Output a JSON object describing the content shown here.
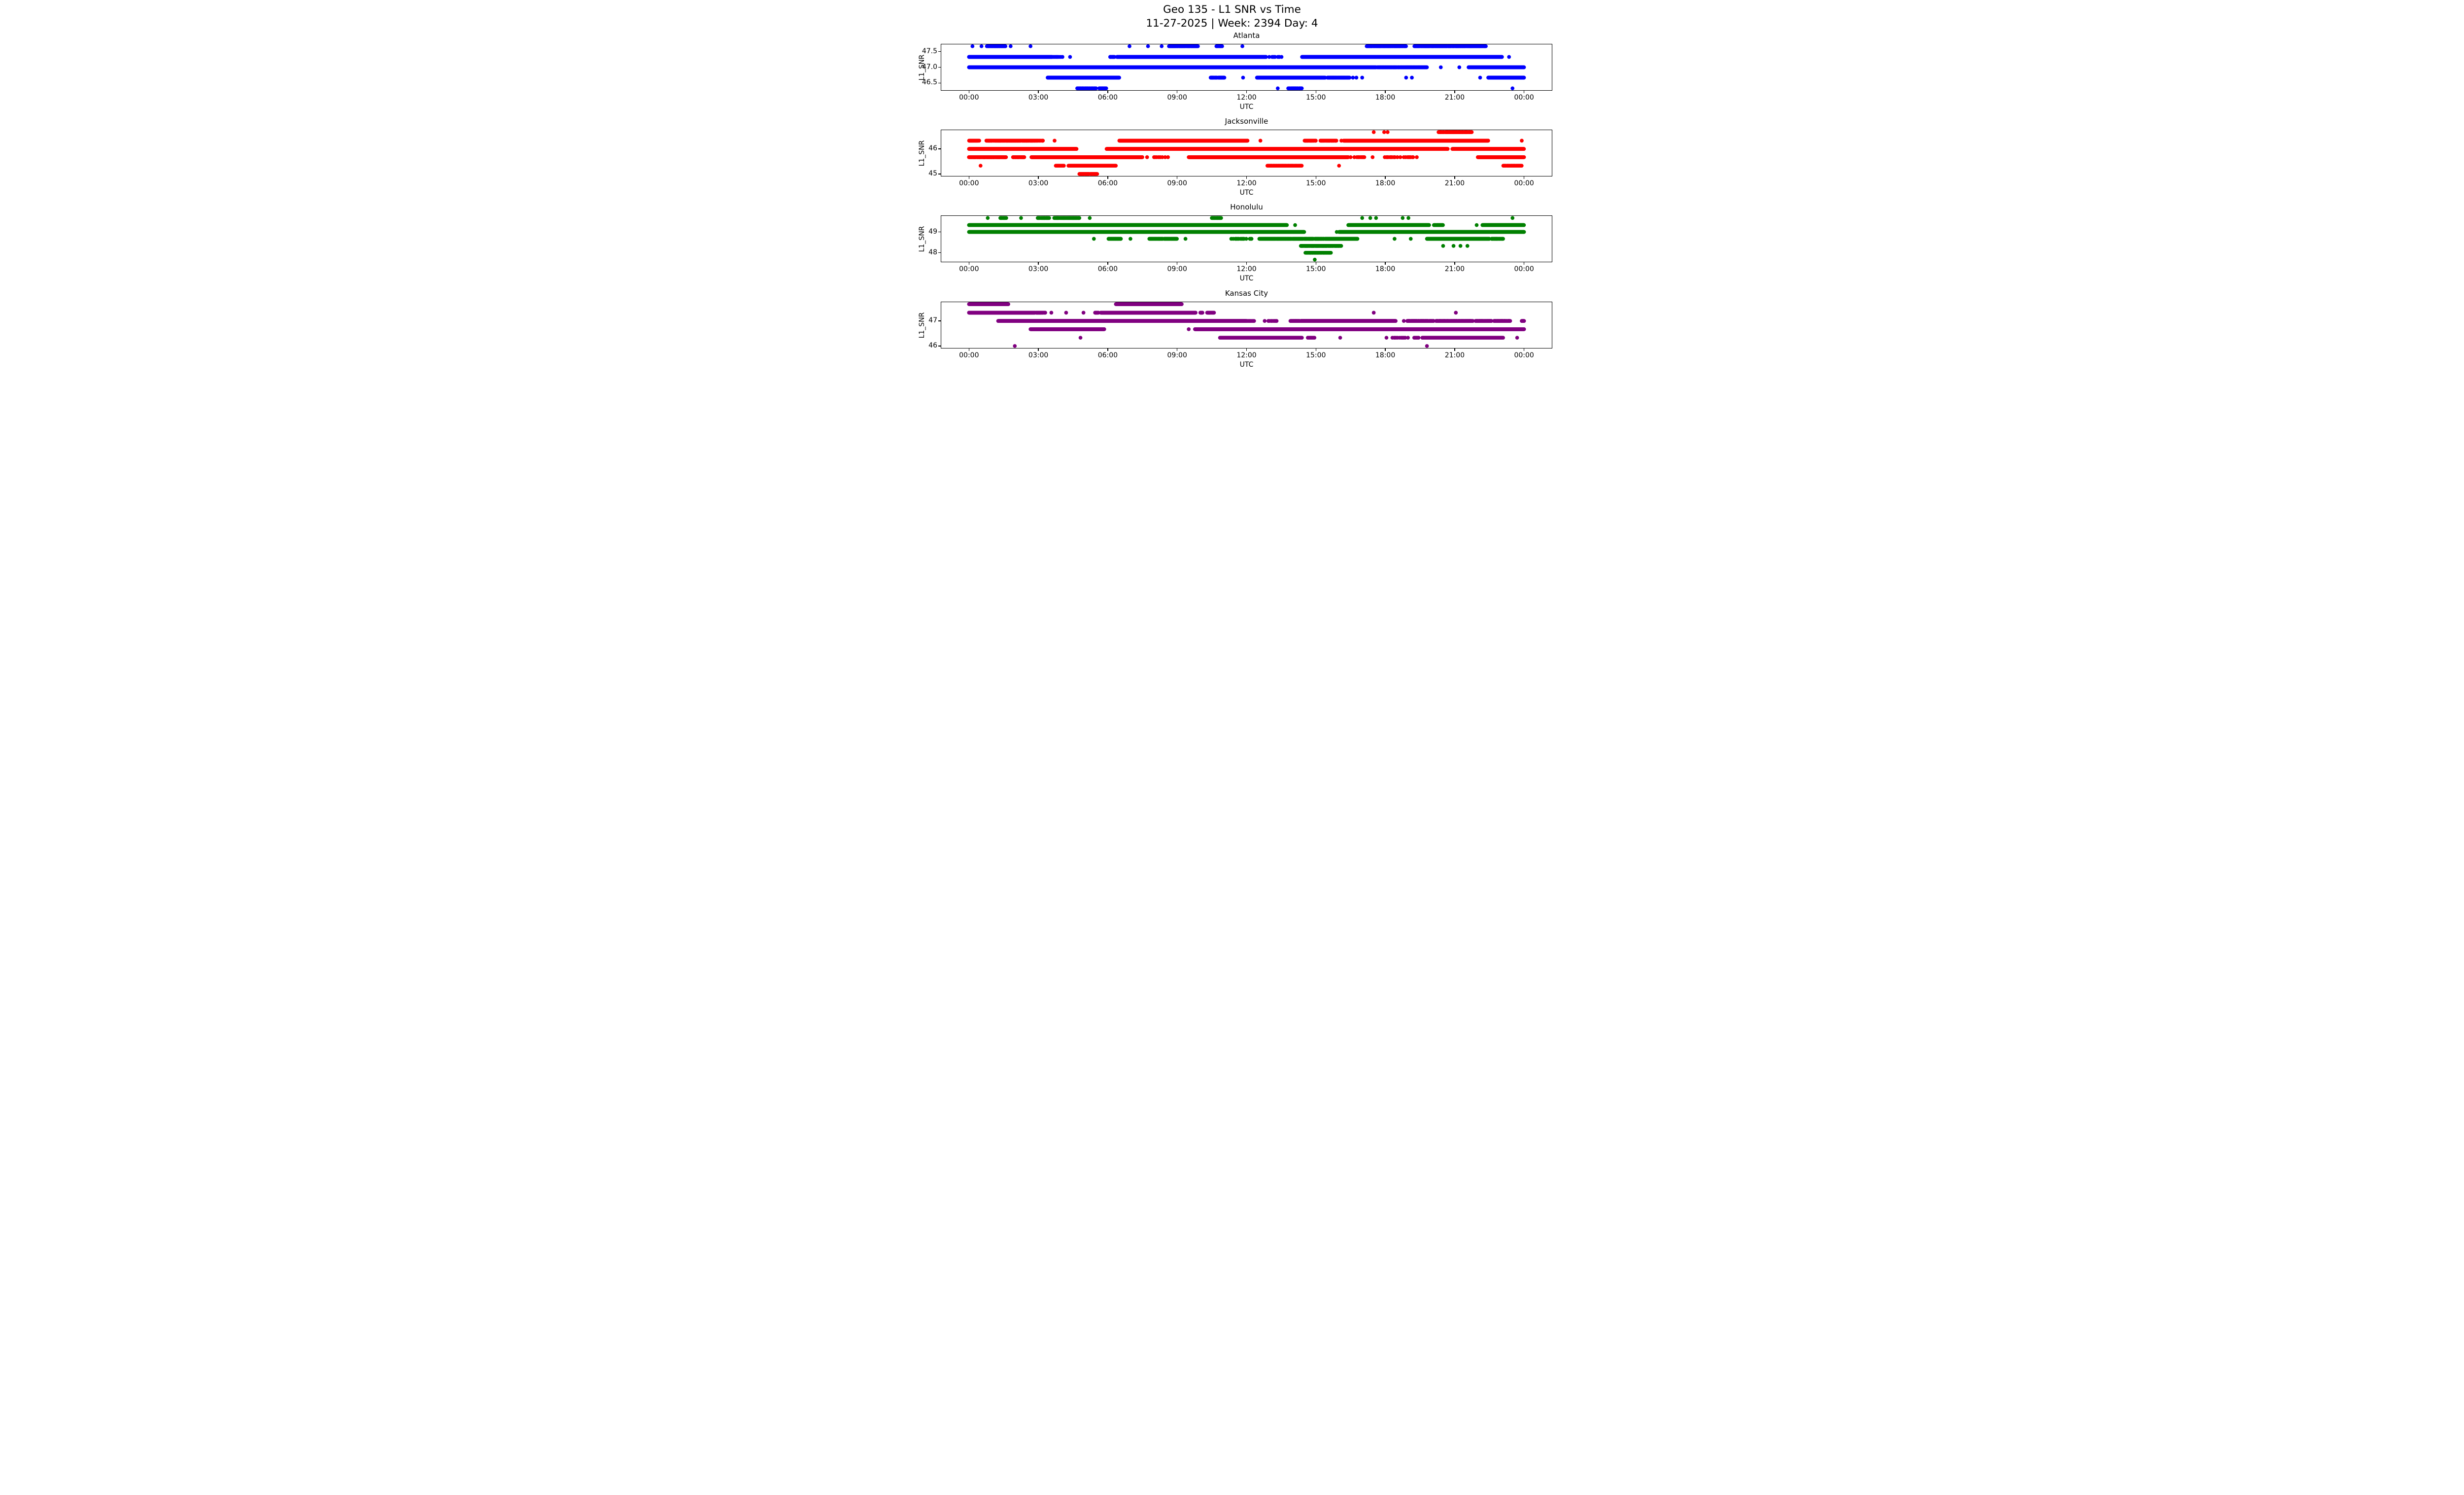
{
  "figure": {
    "suptitle_line1": "Geo 135 - L1 SNR vs Time",
    "suptitle_line2": "11-27-2025 | Week: 2394 Day: 4",
    "background_color": "#ffffff",
    "text_color": "#000000",
    "x_axis": {
      "label": "UTC",
      "tick_labels": [
        "00:00",
        "03:00",
        "06:00",
        "09:00",
        "12:00",
        "15:00",
        "18:00",
        "21:00",
        "00:00"
      ],
      "tick_hours": [
        0,
        3,
        6,
        9,
        12,
        15,
        18,
        21,
        24
      ]
    }
  },
  "chart_data": [
    {
      "type": "scatter",
      "title": "Atlanta",
      "color": "#0000ff",
      "xlabel": "UTC",
      "ylabel": "L1_SNR",
      "xlim_hours": [
        -1.2,
        25.2
      ],
      "ylim": [
        46.27,
        47.73
      ],
      "y_ticks": {
        "values": [
          47.5,
          47.0,
          46.5
        ],
        "labels": [
          "47.5",
          "47.0",
          "46.5"
        ]
      },
      "snr_levels": [
        47.67,
        47.33,
        47.0,
        46.67,
        46.33
      ],
      "runs": [
        [
          47.67,
          0.15,
          0.15,
          "dot"
        ],
        [
          47.67,
          0.54,
          0.54,
          "dot"
        ],
        [
          47.67,
          0.77,
          1.58,
          "dense"
        ],
        [
          47.67,
          1.8,
          1.8,
          "dot"
        ],
        [
          47.67,
          2.66,
          2.66,
          "dot"
        ],
        [
          47.67,
          6.94,
          6.94,
          "dot"
        ],
        [
          47.67,
          7.74,
          7.74,
          "dot"
        ],
        [
          47.67,
          8.33,
          8.33,
          "dot"
        ],
        [
          47.67,
          8.65,
          9.9,
          "dense"
        ],
        [
          47.67,
          10.7,
          10.95,
          "dense"
        ],
        [
          47.67,
          11.82,
          11.82,
          "dot"
        ],
        [
          47.67,
          17.2,
          18.9,
          "dense"
        ],
        [
          47.67,
          19.25,
          22.35,
          "dense"
        ],
        [
          47.33,
          0,
          3.6,
          "solid"
        ],
        [
          47.33,
          3.65,
          4.15,
          "sparse"
        ],
        [
          47.33,
          4.37,
          4.37,
          "dot"
        ],
        [
          47.33,
          6.1,
          6.3,
          "dense"
        ],
        [
          47.33,
          6.4,
          12.85,
          "solid"
        ],
        [
          47.33,
          12.95,
          13.55,
          "sparse"
        ],
        [
          47.33,
          14.4,
          23.05,
          "solid"
        ],
        [
          47.33,
          23.35,
          23.35,
          "dot"
        ],
        [
          47.0,
          0,
          17.6,
          "solid"
        ],
        [
          47.0,
          17.65,
          19.8,
          "dense"
        ],
        [
          47.0,
          20.4,
          20.4,
          "dot"
        ],
        [
          47.0,
          21.2,
          21.2,
          "dot"
        ],
        [
          47.0,
          21.6,
          24,
          "solid"
        ],
        [
          46.67,
          3.4,
          6.5,
          "solid"
        ],
        [
          46.67,
          10.45,
          11.05,
          "dense"
        ],
        [
          46.67,
          11.85,
          11.85,
          "dot"
        ],
        [
          46.67,
          12.45,
          15.4,
          "solid"
        ],
        [
          46.67,
          15.5,
          16.45,
          "dense"
        ],
        [
          46.67,
          16.6,
          16.6,
          "dot"
        ],
        [
          46.67,
          16.75,
          16.75,
          "dot"
        ],
        [
          46.67,
          17.0,
          17.0,
          "dot"
        ],
        [
          46.67,
          18.9,
          18.9,
          "dot"
        ],
        [
          46.67,
          19.15,
          19.15,
          "dot"
        ],
        [
          46.67,
          22.1,
          22.1,
          "dot"
        ],
        [
          46.67,
          22.45,
          24,
          "solid"
        ],
        [
          46.33,
          4.68,
          5.5,
          "dense"
        ],
        [
          46.33,
          5.63,
          5.94,
          "dense"
        ],
        [
          46.33,
          13.35,
          13.35,
          "dot"
        ],
        [
          46.33,
          13.8,
          14.4,
          "dense"
        ],
        [
          46.33,
          23.5,
          23.5,
          "dot"
        ]
      ]
    },
    {
      "type": "scatter",
      "title": "Jacksonville",
      "color": "#ff0000",
      "xlabel": "UTC",
      "ylabel": "L1_SNR",
      "xlim_hours": [
        -1.2,
        25.2
      ],
      "ylim": [
        44.92,
        46.75
      ],
      "y_ticks": {
        "values": [
          46,
          45
        ],
        "labels": [
          "46",
          "45"
        ]
      },
      "snr_levels": [
        46.67,
        46.33,
        46.0,
        45.67,
        45.33,
        45.0
      ],
      "runs": [
        [
          46.67,
          17.5,
          17.5,
          "dot"
        ],
        [
          46.67,
          17.95,
          17.95,
          "dot"
        ],
        [
          46.67,
          18.1,
          18.1,
          "dot"
        ],
        [
          46.67,
          20.3,
          21.75,
          "dense"
        ],
        [
          46.33,
          0,
          0.45,
          "dense"
        ],
        [
          46.33,
          0.75,
          3.2,
          "dense"
        ],
        [
          46.33,
          3.7,
          3.7,
          "dot"
        ],
        [
          46.33,
          6.5,
          12.05,
          "solid"
        ],
        [
          46.33,
          12.6,
          12.6,
          "dot"
        ],
        [
          46.33,
          14.5,
          15.0,
          "dense"
        ],
        [
          46.33,
          15.2,
          15.9,
          "dense"
        ],
        [
          46.33,
          16.1,
          16.1,
          "dot"
        ],
        [
          46.33,
          16.2,
          22.45,
          "solid"
        ],
        [
          46.33,
          23.9,
          23.9,
          "dot"
        ],
        [
          46.0,
          0,
          4.65,
          "solid"
        ],
        [
          46.0,
          5.95,
          20.7,
          "solid"
        ],
        [
          46.0,
          20.9,
          24,
          "solid"
        ],
        [
          45.67,
          0,
          1.6,
          "dense"
        ],
        [
          45.67,
          1.9,
          2.4,
          "dense"
        ],
        [
          45.67,
          2.7,
          7.5,
          "solid"
        ],
        [
          45.67,
          7.7,
          7.7,
          "dot"
        ],
        [
          45.67,
          8.0,
          8.6,
          "sparse"
        ],
        [
          45.67,
          9.5,
          16.4,
          "solid"
        ],
        [
          45.67,
          16.5,
          17.1,
          "sparse"
        ],
        [
          45.67,
          17.45,
          17.45,
          "dot"
        ],
        [
          45.67,
          17.85,
          19.4,
          "sparse"
        ],
        [
          45.67,
          22.0,
          24,
          "solid"
        ],
        [
          45.33,
          0.5,
          0.5,
          "dot"
        ],
        [
          45.33,
          3.75,
          4.1,
          "dense"
        ],
        [
          45.33,
          4.3,
          6.35,
          "solid"
        ],
        [
          45.33,
          12.9,
          14.4,
          "dense"
        ],
        [
          45.33,
          16.0,
          16.0,
          "dot"
        ],
        [
          45.33,
          23.1,
          23.9,
          "dense"
        ],
        [
          45.0,
          4.75,
          5.55,
          "dense"
        ]
      ]
    },
    {
      "type": "scatter",
      "title": "Honolulu",
      "color": "#008000",
      "xlabel": "UTC",
      "ylabel": "L1_SNR",
      "xlim_hours": [
        -1.2,
        25.2
      ],
      "ylim": [
        47.57,
        49.77
      ],
      "y_ticks": {
        "values": [
          49,
          48
        ],
        "labels": [
          "49",
          "48"
        ]
      },
      "snr_levels": [
        49.67,
        49.33,
        49.0,
        48.67,
        48.33,
        48.0,
        47.67
      ],
      "runs": [
        [
          49.67,
          0.81,
          0.81,
          "dot"
        ],
        [
          49.67,
          1.35,
          1.62,
          "dense"
        ],
        [
          49.67,
          2.25,
          2.25,
          "dot"
        ],
        [
          49.67,
          2.97,
          3.47,
          "dense"
        ],
        [
          49.67,
          3.69,
          4.77,
          "dense"
        ],
        [
          49.67,
          5.22,
          5.22,
          "dot"
        ],
        [
          49.67,
          10.5,
          10.9,
          "dense"
        ],
        [
          49.67,
          17.0,
          17.0,
          "dot"
        ],
        [
          49.67,
          17.35,
          17.35,
          "dot"
        ],
        [
          49.67,
          17.6,
          17.6,
          "dot"
        ],
        [
          49.67,
          18.75,
          18.75,
          "dot"
        ],
        [
          49.67,
          19.0,
          19.0,
          "dot"
        ],
        [
          49.67,
          23.5,
          23.5,
          "dot"
        ],
        [
          49.33,
          0,
          13.75,
          "solid"
        ],
        [
          49.33,
          14.1,
          14.1,
          "dot"
        ],
        [
          49.33,
          16.4,
          19.9,
          "solid"
        ],
        [
          49.33,
          20.1,
          20.5,
          "dense"
        ],
        [
          49.33,
          21.95,
          21.95,
          "dot"
        ],
        [
          49.33,
          22.2,
          24,
          "solid"
        ],
        [
          49.0,
          0,
          14.5,
          "solid"
        ],
        [
          49.0,
          15.9,
          15.9,
          "dot"
        ],
        [
          49.0,
          16.0,
          24,
          "solid"
        ],
        [
          48.67,
          5.4,
          5.4,
          "dot"
        ],
        [
          48.67,
          6.03,
          6.57,
          "dense"
        ],
        [
          48.67,
          6.98,
          6.98,
          "dot"
        ],
        [
          48.67,
          7.8,
          9.0,
          "dense"
        ],
        [
          48.67,
          9.36,
          9.36,
          "dot"
        ],
        [
          48.67,
          11.3,
          12.4,
          "sparse"
        ],
        [
          48.67,
          12.55,
          14.9,
          "dense"
        ],
        [
          48.67,
          14.95,
          15.35,
          "dense"
        ],
        [
          48.67,
          15.4,
          16.8,
          "solid"
        ],
        [
          48.67,
          18.4,
          18.4,
          "dot"
        ],
        [
          48.67,
          19.1,
          19.1,
          "dot"
        ],
        [
          48.67,
          19.8,
          22.5,
          "solid"
        ],
        [
          48.67,
          22.6,
          23.1,
          "dense"
        ],
        [
          48.33,
          14.35,
          16.1,
          "dense"
        ],
        [
          48.33,
          20.5,
          20.5,
          "dot"
        ],
        [
          48.33,
          20.95,
          20.95,
          "dot"
        ],
        [
          48.33,
          21.25,
          21.25,
          "dot"
        ],
        [
          48.33,
          21.55,
          21.55,
          "dot"
        ],
        [
          48.0,
          14.55,
          15.65,
          "dense"
        ],
        [
          47.67,
          14.95,
          14.95,
          "dot"
        ]
      ]
    },
    {
      "type": "scatter",
      "title": "Kansas City",
      "color": "#800080",
      "xlabel": "UTC",
      "ylabel": "L1_SNR",
      "xlim_hours": [
        -1.2,
        25.2
      ],
      "ylim": [
        45.92,
        47.75
      ],
      "y_ticks": {
        "values": [
          47,
          46
        ],
        "labels": [
          "47",
          "46"
        ]
      },
      "snr_levels": [
        47.67,
        47.33,
        47.0,
        46.67,
        46.33,
        46.0
      ],
      "runs": [
        [
          47.67,
          0,
          1.7,
          "solid"
        ],
        [
          47.67,
          6.35,
          9.2,
          "solid"
        ],
        [
          47.33,
          0,
          2.85,
          "solid"
        ],
        [
          47.33,
          2.9,
          3.3,
          "dense"
        ],
        [
          47.33,
          3.56,
          3.56,
          "dot"
        ],
        [
          47.33,
          4.2,
          4.2,
          "dot"
        ],
        [
          47.33,
          4.95,
          4.95,
          "dot"
        ],
        [
          47.33,
          5.45,
          5.6,
          "dense"
        ],
        [
          47.33,
          5.7,
          9.8,
          "solid"
        ],
        [
          47.33,
          10.0,
          10.1,
          "dense"
        ],
        [
          47.33,
          10.3,
          10.6,
          "dense"
        ],
        [
          47.33,
          17.5,
          17.5,
          "dot"
        ],
        [
          47.33,
          21.05,
          21.05,
          "dot"
        ],
        [
          47.0,
          1.26,
          12.0,
          "solid"
        ],
        [
          47.0,
          12.0,
          12.35,
          "sparse"
        ],
        [
          47.0,
          12.7,
          13.35,
          "sparse"
        ],
        [
          47.0,
          13.9,
          14.3,
          "dense"
        ],
        [
          47.0,
          14.35,
          18.45,
          "solid"
        ],
        [
          47.0,
          18.8,
          18.8,
          "dot"
        ],
        [
          47.0,
          18.95,
          20.1,
          "dense"
        ],
        [
          47.0,
          20.2,
          21.8,
          "dense"
        ],
        [
          47.0,
          21.9,
          22.6,
          "dense"
        ],
        [
          47.0,
          22.7,
          23.4,
          "dense"
        ],
        [
          47.0,
          23.9,
          24,
          "dense"
        ],
        [
          46.67,
          2.66,
          5.85,
          "solid"
        ],
        [
          46.67,
          9.5,
          9.5,
          "dot"
        ],
        [
          46.67,
          9.77,
          24,
          "solid"
        ],
        [
          46.33,
          4.82,
          4.82,
          "dot"
        ],
        [
          46.33,
          10.85,
          14.4,
          "solid"
        ],
        [
          46.33,
          14.65,
          14.95,
          "dense"
        ],
        [
          46.33,
          16.05,
          16.05,
          "dot"
        ],
        [
          46.33,
          18.05,
          18.05,
          "dot"
        ],
        [
          46.33,
          18.3,
          19.0,
          "sparse"
        ],
        [
          46.33,
          19.25,
          19.45,
          "dense"
        ],
        [
          46.33,
          19.6,
          23.1,
          "solid"
        ],
        [
          46.33,
          23.7,
          23.7,
          "dot"
        ],
        [
          46.0,
          1.98,
          1.98,
          "dot"
        ],
        [
          46.0,
          19.8,
          19.8,
          "dot"
        ]
      ]
    }
  ]
}
